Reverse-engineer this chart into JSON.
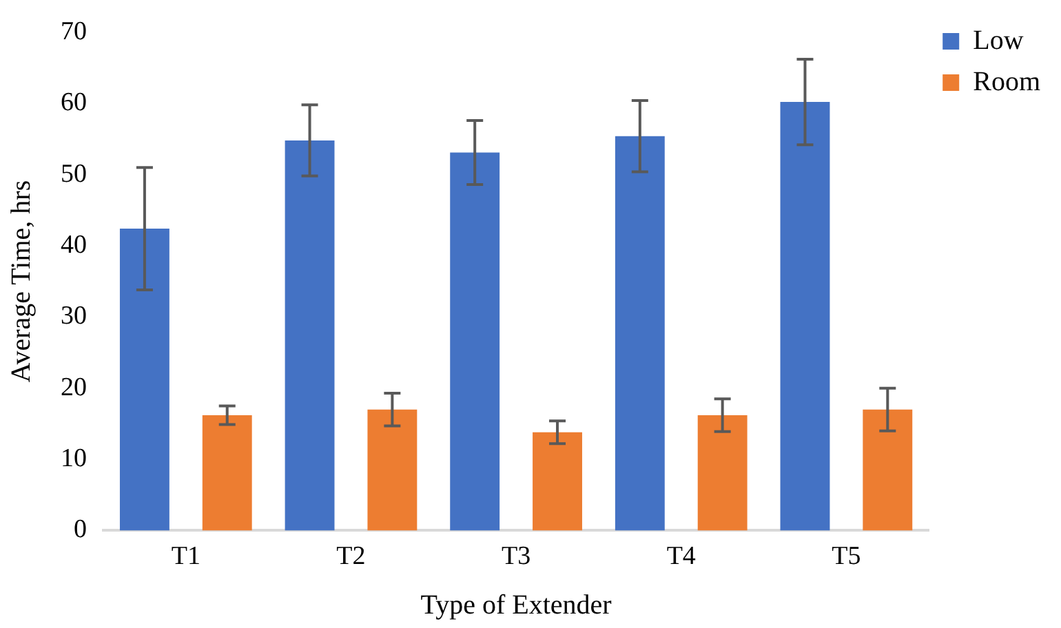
{
  "chart_data": {
    "type": "bar",
    "xlabel": "Type of Extender",
    "ylabel": "Average Time, hrs",
    "categories": [
      "T1",
      "T2",
      "T3",
      "T4",
      "T5"
    ],
    "series": [
      {
        "name": "Low",
        "color": "#4472c4",
        "values": [
          42.4,
          54.8,
          53.1,
          55.4,
          60.2
        ],
        "errors": [
          8.6,
          5,
          4.5,
          5,
          6
        ]
      },
      {
        "name": "Room",
        "color": "#ed7d31",
        "values": [
          16.2,
          17,
          13.8,
          16.2,
          17
        ],
        "errors": [
          1.3,
          2.3,
          1.6,
          2.3,
          3
        ]
      }
    ],
    "ylim": [
      0,
      70
    ],
    "yticks": [
      0,
      10,
      20,
      30,
      40,
      50,
      60,
      70
    ],
    "grid": false,
    "legend": "top right"
  }
}
